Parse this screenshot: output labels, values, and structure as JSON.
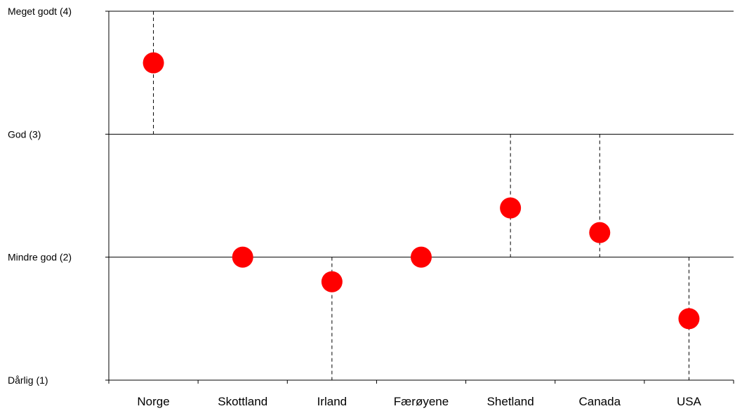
{
  "chart_data": {
    "type": "scatter",
    "categories": [
      "Norge",
      "Skottland",
      "Irland",
      "Færøyene",
      "Shetland",
      "Canada",
      "USA"
    ],
    "values": [
      3.58,
      2.0,
      1.8,
      2.0,
      2.4,
      2.2,
      1.5
    ],
    "ylim": [
      1,
      4
    ],
    "y_ticks": [
      {
        "value": 4,
        "label": "Meget godt (4)"
      },
      {
        "value": 3,
        "label": "God (3)"
      },
      {
        "value": 2,
        "label": "Mindre god (2)"
      },
      {
        "value": 1,
        "label": "Dårlig (1)"
      }
    ],
    "gridlines": [
      2,
      3,
      4
    ],
    "drop_lines": "dashed",
    "marker_color": "#ff0000",
    "axis_color": "#000000",
    "title": "",
    "xlabel": "",
    "ylabel": ""
  }
}
